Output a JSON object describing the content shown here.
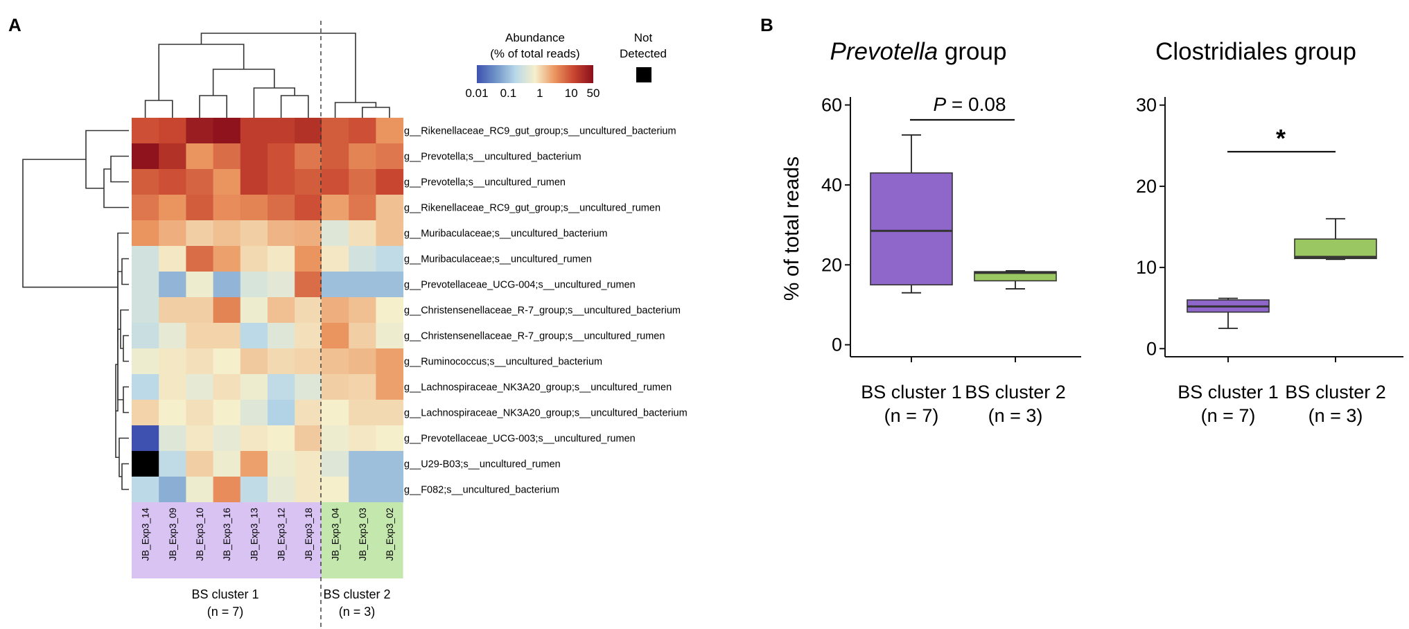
{
  "panel_a": {
    "label": "A",
    "legend_title_1": "Abundance",
    "legend_title_2": "(% of total reads)",
    "legend_ticks": [
      "0.01",
      "0.1",
      "1",
      "10",
      "50"
    ],
    "legend_colors": [
      "#3f51b0",
      "#6f95c8",
      "#b9d8e8",
      "#f5efcc",
      "#eb9660",
      "#c8452f",
      "#8a0f1c"
    ],
    "not_detected_1": "Not",
    "not_detected_2": "Detected",
    "not_detected_color": "#000000",
    "cluster1_color": "#d8c3f2",
    "cluster2_color": "#c4e7ad",
    "cluster1_label": "BS cluster 1",
    "cluster1_n": "(n = 7)",
    "cluster2_label": "BS cluster 2",
    "cluster2_n": "(n = 3)"
  },
  "panel_b": {
    "label": "B",
    "cluster1_color": "#8f66c9",
    "cluster2_color": "#9bc762"
  },
  "chart_data": [
    {
      "type": "heatmap",
      "title": "",
      "color_scale": "log abundance (% of total reads), range 0.01 to 50; black = not detected",
      "samples": [
        "JB_Exp3_14",
        "JB_Exp3_09",
        "JB_Exp3_10",
        "JB_Exp3_16",
        "JB_Exp3_13",
        "JB_Exp3_12",
        "JB_Exp3_18",
        "JB_Exp3_04",
        "JB_Exp3_03",
        "JB_Exp3_02"
      ],
      "sample_clusters": [
        1,
        1,
        1,
        1,
        1,
        1,
        1,
        2,
        2,
        2
      ],
      "taxa": [
        "g__Rikenellaceae_RC9_gut_group;s__uncultured_bacterium",
        "g__Prevotella;s__uncultured_bacterium",
        "g__Prevotella;s__uncultured_rumen",
        "g__Rikenellaceae_RC9_gut_group;s__uncultured_rumen",
        "g__Muribaculaceae;s__uncultured_bacterium",
        "g__Muribaculaceae;s__uncultured_rumen",
        "g__Prevotellaceae_UCG-004;s__uncultured_rumen",
        "g__Christensenellaceae_R-7_group;s__uncultured_bacterium",
        "g__Christensenellaceae_R-7_group;s__uncultured_rumen",
        "g__Ruminococcus;s__uncultured_bacterium",
        "g__Lachnospiraceae_NK3A20_group;s__uncultured_rumen",
        "g__Lachnospiraceae_NK3A20_group;s__uncultured_bacterium",
        "g__Prevotellaceae_UCG-003;s__uncultured_rumen",
        "g__U29-B03;s__uncultured_rumen",
        "g__F082;s__uncultured_bacterium"
      ],
      "values": [
        [
          10,
          12,
          35,
          45,
          15,
          15,
          20,
          8,
          10,
          3
        ],
        [
          45,
          20,
          3,
          6,
          15,
          10,
          5,
          8,
          4,
          5
        ],
        [
          8,
          10,
          7,
          3,
          15,
          10,
          8,
          10,
          6,
          12
        ],
        [
          5,
          3,
          8,
          3.5,
          4,
          6,
          10,
          2.5,
          5,
          1.5
        ],
        [
          3,
          2,
          1.2,
          1.5,
          1.2,
          1.8,
          2,
          0.4,
          0.9,
          1.5
        ],
        [
          0.3,
          0.8,
          6,
          2.5,
          1,
          0.8,
          3,
          0.8,
          0.3,
          0.2
        ],
        [
          0.3,
          0.08,
          0.6,
          0.08,
          0.35,
          0.45,
          6,
          0.1,
          0.1,
          0.1
        ],
        [
          0.3,
          1.2,
          1.2,
          4,
          0.6,
          1.5,
          1,
          2,
          1.5,
          0.7
        ],
        [
          0.25,
          0.5,
          1.1,
          1.1,
          0.18,
          0.4,
          0.9,
          3,
          1.2,
          0.6
        ],
        [
          0.6,
          0.8,
          0.9,
          0.7,
          1.3,
          1,
          1.1,
          1.5,
          1.7,
          2.5
        ],
        [
          0.18,
          0.8,
          0.5,
          0.9,
          0.6,
          0.2,
          0.4,
          1.2,
          1.1,
          2.5
        ],
        [
          1.1,
          0.7,
          0.9,
          0.7,
          0.4,
          0.15,
          0.9,
          0.7,
          1,
          1
        ],
        [
          0.01,
          0.4,
          0.8,
          0.5,
          0.8,
          0.7,
          1.3,
          0.6,
          0.8,
          0.7
        ],
        [
          null,
          0.2,
          1.2,
          0.6,
          2.5,
          0.6,
          0.8,
          0.4,
          0.1,
          0.1
        ],
        [
          0.18,
          0.07,
          0.6,
          3.5,
          0.2,
          0.5,
          0.8,
          0.7,
          0.1,
          0.1
        ]
      ],
      "cluster_labels": [
        "BS cluster 1",
        "BS cluster 2"
      ],
      "cluster_n": [
        "(n = 7)",
        "(n = 3)"
      ]
    },
    {
      "type": "boxplot",
      "title_italic": "Prevotella",
      "title_rest": " group",
      "ylabel": "% of total reads",
      "ylim": [
        -3,
        62
      ],
      "yticks": [
        0,
        20,
        40,
        60
      ],
      "groups": [
        {
          "name": "BS cluster 1",
          "n": "(n = 7)",
          "min": 13,
          "q1": 15,
          "median": 28.5,
          "q3": 43,
          "max": 52.5
        },
        {
          "name": "BS cluster 2",
          "n": "(n = 3)",
          "min": 14,
          "q1": 16,
          "median": 18,
          "q3": 18.3,
          "max": 18.5
        }
      ],
      "annotation_italic": "P",
      "annotation_rest": " = 0.08"
    },
    {
      "type": "boxplot",
      "title": "Clostridiales group",
      "ylabel": "",
      "ylim": [
        -1,
        31
      ],
      "yticks": [
        0,
        10,
        20,
        30
      ],
      "groups": [
        {
          "name": "BS cluster 1",
          "n": "(n = 7)",
          "min": 2.5,
          "q1": 4.5,
          "median": 5.2,
          "q3": 6,
          "max": 6.2
        },
        {
          "name": "BS cluster 2",
          "n": "(n = 3)",
          "min": 11,
          "q1": 11.1,
          "median": 11.3,
          "q3": 13.5,
          "max": 16
        }
      ],
      "annotation": "*"
    }
  ]
}
